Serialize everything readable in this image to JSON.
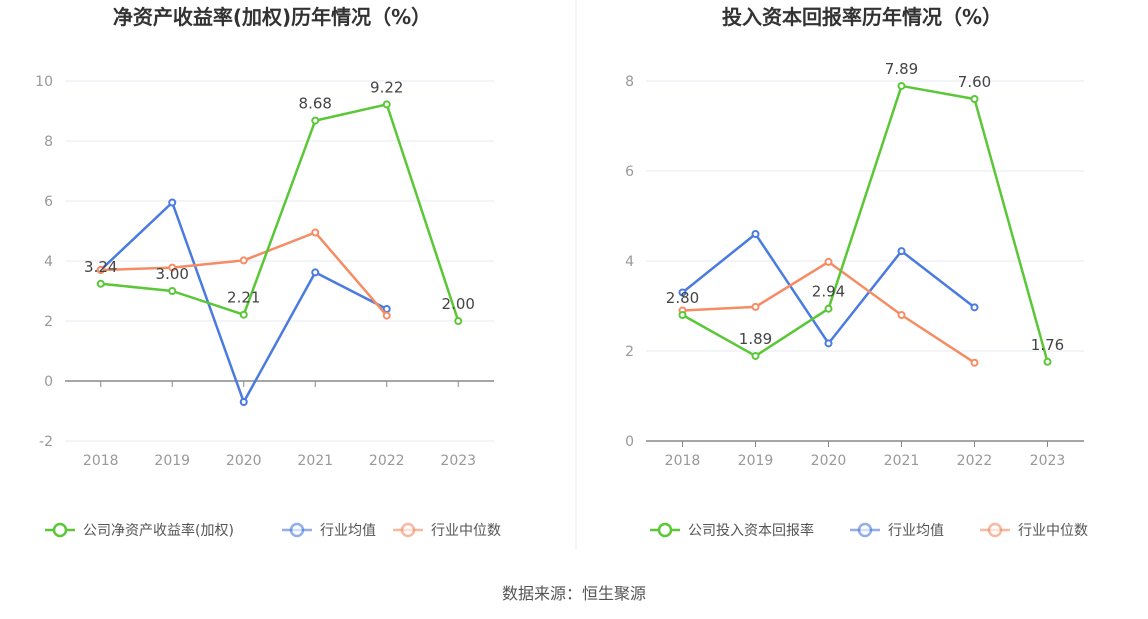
{
  "source": "数据来源：恒生聚源",
  "colors": {
    "company": "#5ac737",
    "avg": "#4a7be0",
    "median": "#f58c63"
  },
  "chart_data": [
    {
      "type": "line",
      "title": "净资产收益率(加权)历年情况（%）",
      "categories": [
        "2018",
        "2019",
        "2020",
        "2021",
        "2022",
        "2023"
      ],
      "ylim": [
        -2,
        10
      ],
      "yticks": [
        -2,
        0,
        2,
        4,
        6,
        8,
        10
      ],
      "ytick_labels": [
        "-2",
        "0",
        "2",
        "4",
        "6",
        "8",
        "10"
      ],
      "legend": [
        "公司净资产收益率(加权)",
        "行业均值",
        "行业中位数"
      ],
      "series": [
        {
          "name": "公司净资产收益率(加权)",
          "values": [
            3.24,
            3.0,
            2.21,
            8.68,
            9.22,
            2.0
          ],
          "labels": [
            "3.24",
            "3.00",
            "2.21",
            "8.68",
            "9.22",
            "2.00"
          ]
        },
        {
          "name": "行业均值",
          "values": [
            3.7,
            5.95,
            -0.7,
            3.62,
            2.4,
            null
          ]
        },
        {
          "name": "行业中位数",
          "values": [
            3.7,
            3.78,
            4.02,
            4.95,
            2.18,
            null
          ]
        }
      ]
    },
    {
      "type": "line",
      "title": "投入资本回报率历年情况（%）",
      "categories": [
        "2018",
        "2019",
        "2020",
        "2021",
        "2022",
        "2023"
      ],
      "ylim": [
        0,
        8
      ],
      "yticks": [
        0,
        2,
        4,
        6,
        8
      ],
      "ytick_labels": [
        "0",
        "2",
        "4",
        "6",
        "8"
      ],
      "legend": [
        "公司投入资本回报率",
        "行业均值",
        "行业中位数"
      ],
      "series": [
        {
          "name": "公司投入资本回报率",
          "values": [
            2.8,
            1.89,
            2.94,
            7.89,
            7.6,
            1.76
          ],
          "labels": [
            "2.80",
            "1.89",
            "2.94",
            "7.89",
            "7.60",
            "1.76"
          ]
        },
        {
          "name": "行业均值",
          "values": [
            3.3,
            4.6,
            2.17,
            4.22,
            2.97,
            null
          ]
        },
        {
          "name": "行业中位数",
          "values": [
            2.9,
            2.98,
            3.98,
            2.8,
            1.74,
            null
          ]
        }
      ]
    }
  ]
}
